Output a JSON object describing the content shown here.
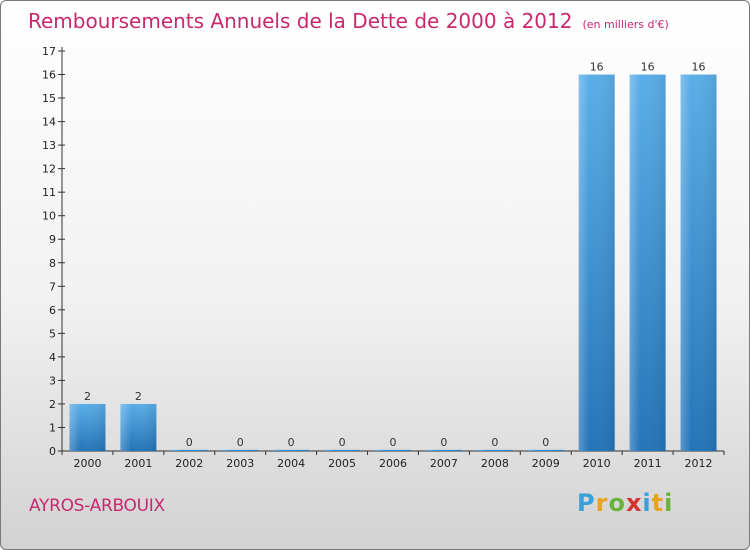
{
  "page": {
    "title": "Remboursements Annuels de la Dette de 2000 à 2012",
    "unit_label": "(en milliers d'€)",
    "town": "AYROS-ARBOUIX",
    "brand": "Proxiti",
    "brand_letters": [
      "P",
      "r",
      "o",
      "x",
      "i",
      "t",
      "i"
    ]
  },
  "colors": {
    "title": "#c8286e",
    "bar_light": "#5aaee8",
    "bar_dark": "#2474b8",
    "grid_axis": "#333333"
  },
  "chart_data": {
    "type": "bar",
    "title": "Remboursements Annuels de la Dette de 2000 à 2012",
    "subtitle": "(en milliers d'€)",
    "categories": [
      "2000",
      "2001",
      "2002",
      "2003",
      "2004",
      "2005",
      "2006",
      "2007",
      "2008",
      "2009",
      "2010",
      "2011",
      "2012"
    ],
    "values": [
      2,
      2,
      0,
      0,
      0,
      0,
      0,
      0,
      0,
      0,
      16,
      16,
      16
    ],
    "ylim": [
      0,
      17
    ],
    "yticks": [
      0,
      1,
      2,
      3,
      4,
      5,
      6,
      7,
      8,
      9,
      10,
      11,
      12,
      13,
      14,
      15,
      16,
      17
    ],
    "xlabel": "",
    "ylabel": "",
    "grid": false,
    "legend": "none"
  }
}
